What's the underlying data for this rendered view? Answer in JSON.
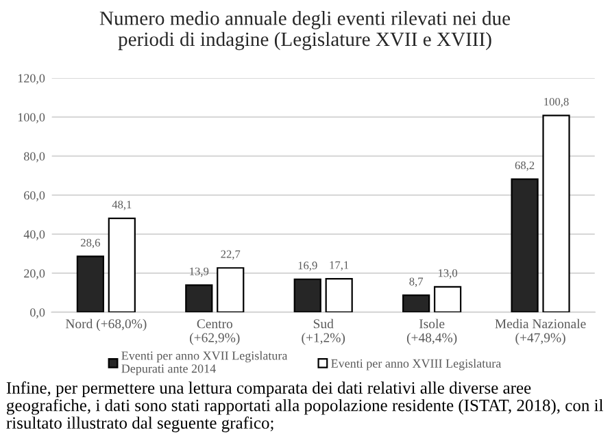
{
  "chart_data": {
    "type": "bar",
    "title": "Numero medio annuale degli eventi rilevati nei due\nperiodi di indagine (Legislature XVII e XVIII)",
    "categories": [
      "Nord (+68,0%)",
      "Centro\n(+62,9%)",
      "Sud\n(+1,2%)",
      "Isole\n(+48,4%)",
      "Media Nazionale\n(+47,9%)"
    ],
    "series": [
      {
        "name": "Eventi per anno XVII Legislatura\nDepurati ante 2014",
        "color": "#262626",
        "values": [
          28.6,
          13.9,
          16.9,
          8.7,
          68.2
        ],
        "value_labels": [
          "28,6",
          "13,9",
          "16,9",
          "8,7",
          "68,2"
        ]
      },
      {
        "name": "Eventi per anno XVIII Legislatura",
        "color": "#ffffff",
        "values": [
          48.1,
          22.7,
          17.1,
          13.0,
          100.8
        ],
        "value_labels": [
          "48,1",
          "22,7",
          "17,1",
          "13,0",
          "100,8"
        ]
      }
    ],
    "ylim": [
      0,
      120
    ],
    "yticks": [
      {
        "value": 0,
        "label": "0,0"
      },
      {
        "value": 20,
        "label": "20,0"
      },
      {
        "value": 40,
        "label": "40,0"
      },
      {
        "value": 60,
        "label": "60,0"
      },
      {
        "value": 80,
        "label": "80,0"
      },
      {
        "value": 100,
        "label": "100,0"
      },
      {
        "value": 120,
        "label": "120,0"
      }
    ],
    "grid": "y",
    "legend": "bottom",
    "annotations": [
      "Infine, per permettere una lettura comparata dei dati relativi alle diverse aree geografiche, i dati sono stati rapportati alla popolazione residente (ISTAT, 2018), con il risultato illustrato dal seguente grafico;"
    ]
  }
}
